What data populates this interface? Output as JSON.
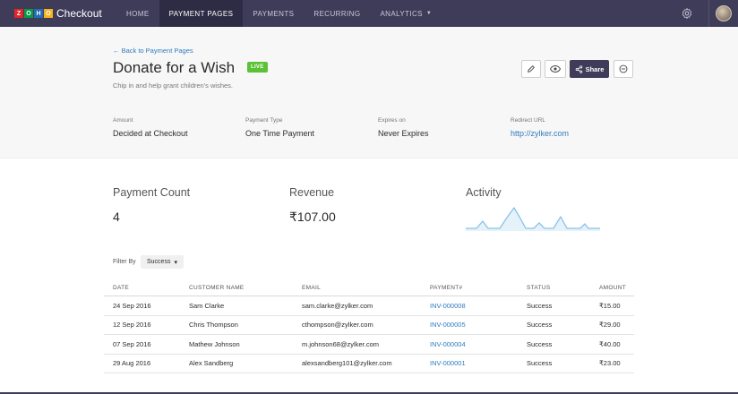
{
  "brand": {
    "logo_letters": [
      "Z",
      "O",
      "H",
      "O"
    ],
    "logo_colors": [
      "#e42527",
      "#089949",
      "#226db4",
      "#f9b21d"
    ],
    "product": "Checkout"
  },
  "nav": {
    "items": [
      {
        "label": "HOME",
        "active": false
      },
      {
        "label": "PAYMENT PAGES",
        "active": true
      },
      {
        "label": "PAYMENTS",
        "active": false
      },
      {
        "label": "RECURRING",
        "active": false
      },
      {
        "label": "ANALYTICS",
        "active": false
      }
    ],
    "analytics_caret": "▼"
  },
  "header": {
    "back_link": "← Back to Payment Pages",
    "title": "Donate for a Wish",
    "status_badge": "LIVE",
    "subtitle": "Chip in and help grant children's wishes.",
    "share_label": "Share",
    "meta": [
      {
        "label": "Amount",
        "value": "Decided at Checkout"
      },
      {
        "label": "Payment Type",
        "value": "One Time Payment"
      },
      {
        "label": "Expires on",
        "value": "Never Expires"
      },
      {
        "label": "Redirect URL",
        "value": "http://zylker.com"
      }
    ]
  },
  "stats": {
    "payment_count_label": "Payment Count",
    "payment_count_value": "4",
    "revenue_label": "Revenue",
    "revenue_value": "₹107.00",
    "activity_label": "Activity"
  },
  "filter": {
    "label": "Filter By",
    "selected": "Success",
    "caret": "▾"
  },
  "table": {
    "columns": [
      "DATE",
      "CUSTOMER NAME",
      "EMAIL",
      "PAYMENT#",
      "STATUS",
      "AMOUNT"
    ],
    "rows": [
      {
        "date": "24 Sep 2016",
        "name": "Sam Clarke",
        "email": "sam.clarke@zylker.com",
        "payment": "INV-000008",
        "status": "Success",
        "amount": "₹15.00"
      },
      {
        "date": "12 Sep 2016",
        "name": "Chris Thompson",
        "email": "cthompson@zylker.com",
        "payment": "INV-000005",
        "status": "Success",
        "amount": "₹29.00"
      },
      {
        "date": "07 Sep 2016",
        "name": "Mathew Johnson",
        "email": "m.johnson68@zylker.com",
        "payment": "INV-000004",
        "status": "Success",
        "amount": "₹40.00"
      },
      {
        "date": "29 Aug 2016",
        "name": "Alex Sandberg",
        "email": "alexsandberg101@zylker.com",
        "payment": "INV-000001",
        "status": "Success",
        "amount": "₹23.00"
      }
    ]
  },
  "colors": {
    "nav_bg": "#3f3c5a",
    "nav_active": "#2e2c44",
    "link": "#2f7bbf",
    "live": "#5bc236",
    "sparkline": "#89c2e8"
  }
}
